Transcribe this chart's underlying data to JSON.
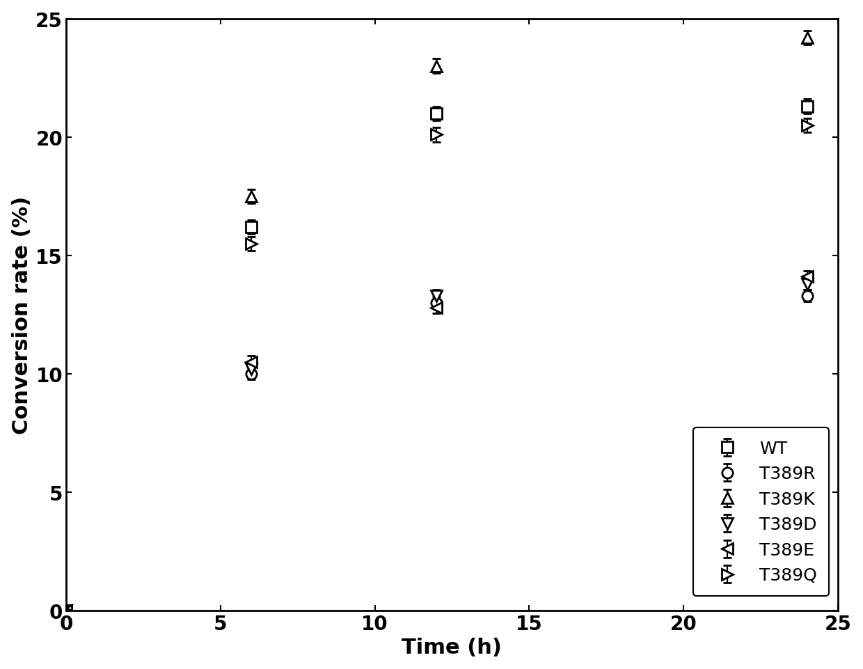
{
  "time": [
    0,
    6,
    12,
    24
  ],
  "series_order": [
    "WT",
    "T389R",
    "T389K",
    "T389D",
    "T389E",
    "T389Q"
  ],
  "series": {
    "WT": {
      "values": [
        0,
        16.2,
        21.0,
        21.3
      ],
      "yerr": [
        0.0,
        0.3,
        0.3,
        0.3
      ],
      "marker": "s",
      "label": "WT"
    },
    "T389R": {
      "values": [
        0,
        10.0,
        13.0,
        13.3
      ],
      "yerr": [
        0.0,
        0.25,
        0.25,
        0.25
      ],
      "marker": "o",
      "label": "T389R"
    },
    "T389K": {
      "values": [
        0,
        17.5,
        23.0,
        24.2
      ],
      "yerr": [
        0.0,
        0.3,
        0.3,
        0.3
      ],
      "marker": "^",
      "label": "T389K"
    },
    "T389D": {
      "values": [
        0,
        10.2,
        13.3,
        13.8
      ],
      "yerr": [
        0.0,
        0.25,
        0.25,
        0.25
      ],
      "marker": "v",
      "label": "T389D"
    },
    "T389E": {
      "values": [
        0,
        10.5,
        12.8,
        14.1
      ],
      "yerr": [
        0.0,
        0.25,
        0.25,
        0.25
      ],
      "marker": "<",
      "label": "T389E"
    },
    "T389Q": {
      "values": [
        0,
        15.5,
        20.1,
        20.5
      ],
      "yerr": [
        0.0,
        0.3,
        0.3,
        0.3
      ],
      "marker": ">",
      "label": "T389Q"
    }
  },
  "xlabel": "Time (h)",
  "ylabel": "Conversion rate (%)",
  "xlim": [
    0,
    25
  ],
  "ylim": [
    0,
    25
  ],
  "xticks": [
    0,
    5,
    10,
    15,
    20,
    25
  ],
  "yticks": [
    0,
    5,
    10,
    15,
    20,
    25
  ],
  "line_color": "#000000",
  "marker_facecolor": "#ffffff",
  "marker_size": 11,
  "linewidth": 2.2,
  "legend_fontsize": 18,
  "axis_label_fontsize": 22,
  "tick_fontsize": 20,
  "capsize": 4,
  "capthick": 1.5,
  "errbar_linewidth": 1.5
}
